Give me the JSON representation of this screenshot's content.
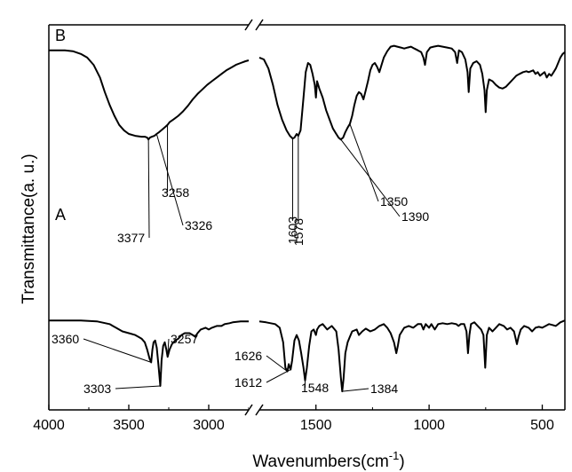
{
  "chart_data": {
    "type": "line",
    "title": "",
    "xlabel": "Wavenumbers(cm",
    "xlabel_sup": "-1",
    "xlabel_close": ")",
    "ylabel": "Transmittance(a. u.)",
    "x_axis": {
      "reversed": true,
      "broken": true,
      "segments": [
        [
          4000,
          2750
        ],
        [
          1750,
          400
        ]
      ],
      "ticks": [
        4000,
        3500,
        3000,
        1500,
        1000,
        500
      ]
    },
    "grid": false,
    "series": [
      {
        "name": "A",
        "points": [
          [
            4000,
            0.64
          ],
          [
            3800,
            0.64
          ],
          [
            3700,
            0.645
          ],
          [
            3620,
            0.66
          ],
          [
            3580,
            0.68
          ],
          [
            3540,
            0.7
          ],
          [
            3500,
            0.71
          ],
          [
            3460,
            0.72
          ],
          [
            3440,
            0.73
          ],
          [
            3420,
            0.74
          ],
          [
            3400,
            0.76
          ],
          [
            3385,
            0.8
          ],
          [
            3370,
            0.85
          ],
          [
            3360,
            0.87
          ],
          [
            3352,
            0.8
          ],
          [
            3345,
            0.76
          ],
          [
            3335,
            0.75
          ],
          [
            3325,
            0.79
          ],
          [
            3315,
            0.88
          ],
          [
            3303,
            1.0
          ],
          [
            3295,
            0.86
          ],
          [
            3285,
            0.78
          ],
          [
            3275,
            0.76
          ],
          [
            3265,
            0.8
          ],
          [
            3257,
            0.84
          ],
          [
            3245,
            0.8
          ],
          [
            3230,
            0.77
          ],
          [
            3210,
            0.75
          ],
          [
            3190,
            0.74
          ],
          [
            3170,
            0.72
          ],
          [
            3150,
            0.71
          ],
          [
            3120,
            0.71
          ],
          [
            3100,
            0.72
          ],
          [
            3085,
            0.73
          ],
          [
            3070,
            0.71
          ],
          [
            3050,
            0.69
          ],
          [
            3020,
            0.68
          ],
          [
            3000,
            0.69
          ],
          [
            2980,
            0.68
          ],
          [
            2950,
            0.67
          ],
          [
            2920,
            0.67
          ],
          [
            2900,
            0.66
          ],
          [
            2870,
            0.655
          ],
          [
            2850,
            0.65
          ],
          [
            2800,
            0.645
          ],
          [
            2750,
            0.645
          ],
          [
            1750,
            0.645
          ],
          [
            1720,
            0.65
          ],
          [
            1700,
            0.655
          ],
          [
            1680,
            0.66
          ],
          [
            1660,
            0.68
          ],
          [
            1645,
            0.76
          ],
          [
            1635,
            0.9
          ],
          [
            1626,
            0.92
          ],
          [
            1620,
            0.88
          ],
          [
            1612,
            0.91
          ],
          [
            1605,
            0.86
          ],
          [
            1595,
            0.75
          ],
          [
            1585,
            0.72
          ],
          [
            1575,
            0.75
          ],
          [
            1565,
            0.82
          ],
          [
            1555,
            0.9
          ],
          [
            1548,
            0.97
          ],
          [
            1540,
            0.9
          ],
          [
            1530,
            0.78
          ],
          [
            1520,
            0.7
          ],
          [
            1510,
            0.69
          ],
          [
            1500,
            0.72
          ],
          [
            1495,
            0.69
          ],
          [
            1485,
            0.67
          ],
          [
            1470,
            0.66
          ],
          [
            1450,
            0.69
          ],
          [
            1430,
            0.67
          ],
          [
            1410,
            0.7
          ],
          [
            1400,
            0.8
          ],
          [
            1390,
            0.95
          ],
          [
            1384,
            1.03
          ],
          [
            1378,
            0.96
          ],
          [
            1370,
            0.82
          ],
          [
            1360,
            0.76
          ],
          [
            1350,
            0.73
          ],
          [
            1340,
            0.7
          ],
          [
            1320,
            0.69
          ],
          [
            1310,
            0.72
          ],
          [
            1295,
            0.7
          ],
          [
            1280,
            0.685
          ],
          [
            1260,
            0.7
          ],
          [
            1240,
            0.69
          ],
          [
            1220,
            0.67
          ],
          [
            1200,
            0.66
          ],
          [
            1185,
            0.68
          ],
          [
            1170,
            0.71
          ],
          [
            1155,
            0.76
          ],
          [
            1145,
            0.82
          ],
          [
            1138,
            0.78
          ],
          [
            1130,
            0.72
          ],
          [
            1110,
            0.68
          ],
          [
            1090,
            0.67
          ],
          [
            1070,
            0.68
          ],
          [
            1050,
            0.66
          ],
          [
            1035,
            0.66
          ],
          [
            1025,
            0.69
          ],
          [
            1015,
            0.66
          ],
          [
            1000,
            0.68
          ],
          [
            990,
            0.66
          ],
          [
            975,
            0.69
          ],
          [
            960,
            0.66
          ],
          [
            940,
            0.655
          ],
          [
            920,
            0.66
          ],
          [
            900,
            0.655
          ],
          [
            880,
            0.66
          ],
          [
            870,
            0.67
          ],
          [
            860,
            0.66
          ],
          [
            845,
            0.66
          ],
          [
            835,
            0.7
          ],
          [
            828,
            0.82
          ],
          [
            822,
            0.72
          ],
          [
            815,
            0.66
          ],
          [
            800,
            0.65
          ],
          [
            785,
            0.67
          ],
          [
            770,
            0.69
          ],
          [
            760,
            0.72
          ],
          [
            752,
            0.9
          ],
          [
            745,
            0.72
          ],
          [
            735,
            0.68
          ],
          [
            720,
            0.7
          ],
          [
            705,
            0.68
          ],
          [
            690,
            0.66
          ],
          [
            670,
            0.67
          ],
          [
            655,
            0.69
          ],
          [
            640,
            0.68
          ],
          [
            625,
            0.7
          ],
          [
            612,
            0.77
          ],
          [
            605,
            0.73
          ],
          [
            595,
            0.69
          ],
          [
            580,
            0.67
          ],
          [
            560,
            0.68
          ],
          [
            545,
            0.7
          ],
          [
            530,
            0.68
          ],
          [
            515,
            0.675
          ],
          [
            500,
            0.68
          ],
          [
            485,
            0.67
          ],
          [
            470,
            0.66
          ],
          [
            455,
            0.665
          ],
          [
            440,
            0.67
          ],
          [
            420,
            0.65
          ],
          [
            400,
            0.64
          ]
        ]
      },
      {
        "name": "B",
        "points": [
          [
            4000,
            0.14
          ],
          [
            3900,
            0.14
          ],
          [
            3850,
            0.145
          ],
          [
            3800,
            0.16
          ],
          [
            3760,
            0.18
          ],
          [
            3720,
            0.22
          ],
          [
            3680,
            0.29
          ],
          [
            3650,
            0.37
          ],
          [
            3620,
            0.44
          ],
          [
            3590,
            0.5
          ],
          [
            3560,
            0.55
          ],
          [
            3530,
            0.58
          ],
          [
            3500,
            0.6
          ],
          [
            3460,
            0.61
          ],
          [
            3420,
            0.615
          ],
          [
            3400,
            0.615
          ],
          [
            3385,
            0.62
          ],
          [
            3377,
            0.63
          ],
          [
            3368,
            0.62
          ],
          [
            3355,
            0.615
          ],
          [
            3340,
            0.61
          ],
          [
            3326,
            0.6
          ],
          [
            3310,
            0.59
          ],
          [
            3290,
            0.575
          ],
          [
            3270,
            0.56
          ],
          [
            3258,
            0.55
          ],
          [
            3245,
            0.535
          ],
          [
            3220,
            0.52
          ],
          [
            3190,
            0.5
          ],
          [
            3160,
            0.475
          ],
          [
            3130,
            0.445
          ],
          [
            3100,
            0.41
          ],
          [
            3070,
            0.38
          ],
          [
            3040,
            0.355
          ],
          [
            3010,
            0.33
          ],
          [
            2980,
            0.31
          ],
          [
            2950,
            0.29
          ],
          [
            2920,
            0.27
          ],
          [
            2890,
            0.25
          ],
          [
            2860,
            0.235
          ],
          [
            2830,
            0.22
          ],
          [
            2800,
            0.21
          ],
          [
            2770,
            0.2
          ],
          [
            2750,
            0.195
          ],
          [
            1750,
            0.18
          ],
          [
            1730,
            0.19
          ],
          [
            1710,
            0.24
          ],
          [
            1690,
            0.33
          ],
          [
            1670,
            0.44
          ],
          [
            1650,
            0.52
          ],
          [
            1630,
            0.58
          ],
          [
            1615,
            0.61
          ],
          [
            1603,
            0.625
          ],
          [
            1595,
            0.62
          ],
          [
            1585,
            0.6
          ],
          [
            1578,
            0.61
          ],
          [
            1568,
            0.58
          ],
          [
            1555,
            0.4
          ],
          [
            1545,
            0.26
          ],
          [
            1535,
            0.21
          ],
          [
            1525,
            0.22
          ],
          [
            1515,
            0.27
          ],
          [
            1505,
            0.33
          ],
          [
            1500,
            0.4
          ],
          [
            1495,
            0.31
          ],
          [
            1485,
            0.35
          ],
          [
            1470,
            0.4
          ],
          [
            1455,
            0.47
          ],
          [
            1440,
            0.52
          ],
          [
            1425,
            0.57
          ],
          [
            1410,
            0.6
          ],
          [
            1400,
            0.62
          ],
          [
            1390,
            0.63
          ],
          [
            1380,
            0.62
          ],
          [
            1370,
            0.59
          ],
          [
            1360,
            0.565
          ],
          [
            1350,
            0.545
          ],
          [
            1340,
            0.5
          ],
          [
            1330,
            0.44
          ],
          [
            1320,
            0.39
          ],
          [
            1310,
            0.37
          ],
          [
            1300,
            0.38
          ],
          [
            1290,
            0.41
          ],
          [
            1280,
            0.36
          ],
          [
            1270,
            0.31
          ],
          [
            1260,
            0.25
          ],
          [
            1250,
            0.22
          ],
          [
            1240,
            0.21
          ],
          [
            1230,
            0.23
          ],
          [
            1220,
            0.26
          ],
          [
            1210,
            0.22
          ],
          [
            1200,
            0.18
          ],
          [
            1185,
            0.145
          ],
          [
            1170,
            0.12
          ],
          [
            1155,
            0.115
          ],
          [
            1140,
            0.12
          ],
          [
            1125,
            0.125
          ],
          [
            1110,
            0.13
          ],
          [
            1095,
            0.125
          ],
          [
            1080,
            0.12
          ],
          [
            1065,
            0.13
          ],
          [
            1050,
            0.14
          ],
          [
            1035,
            0.15
          ],
          [
            1025,
            0.18
          ],
          [
            1018,
            0.22
          ],
          [
            1010,
            0.15
          ],
          [
            995,
            0.125
          ],
          [
            980,
            0.12
          ],
          [
            960,
            0.115
          ],
          [
            940,
            0.12
          ],
          [
            920,
            0.125
          ],
          [
            900,
            0.13
          ],
          [
            885,
            0.15
          ],
          [
            876,
            0.21
          ],
          [
            868,
            0.14
          ],
          [
            855,
            0.15
          ],
          [
            840,
            0.19
          ],
          [
            830,
            0.26
          ],
          [
            825,
            0.37
          ],
          [
            818,
            0.24
          ],
          [
            805,
            0.21
          ],
          [
            790,
            0.2
          ],
          [
            775,
            0.22
          ],
          [
            765,
            0.27
          ],
          [
            755,
            0.36
          ],
          [
            750,
            0.48
          ],
          [
            745,
            0.36
          ],
          [
            735,
            0.3
          ],
          [
            720,
            0.31
          ],
          [
            705,
            0.33
          ],
          [
            690,
            0.345
          ],
          [
            675,
            0.35
          ],
          [
            660,
            0.34
          ],
          [
            645,
            0.32
          ],
          [
            630,
            0.3
          ],
          [
            615,
            0.28
          ],
          [
            600,
            0.27
          ],
          [
            585,
            0.26
          ],
          [
            570,
            0.255
          ],
          [
            560,
            0.26
          ],
          [
            550,
            0.255
          ],
          [
            540,
            0.25
          ],
          [
            530,
            0.27
          ],
          [
            520,
            0.26
          ],
          [
            510,
            0.28
          ],
          [
            500,
            0.27
          ],
          [
            490,
            0.26
          ],
          [
            480,
            0.29
          ],
          [
            470,
            0.27
          ],
          [
            460,
            0.28
          ],
          [
            450,
            0.26
          ],
          [
            440,
            0.24
          ],
          [
            430,
            0.21
          ],
          [
            420,
            0.18
          ],
          [
            410,
            0.16
          ],
          [
            400,
            0.15
          ]
        ]
      }
    ],
    "annotations": [
      {
        "text": "3258",
        "series": "B",
        "x": 3258
      },
      {
        "text": "3326",
        "series": "B",
        "x": 3326
      },
      {
        "text": "3377",
        "series": "B",
        "x": 3377
      },
      {
        "text": "1603",
        "series": "B",
        "x": 1603
      },
      {
        "text": "1578",
        "series": "B",
        "x": 1578
      },
      {
        "text": "1350",
        "series": "B",
        "x": 1350
      },
      {
        "text": "1390",
        "series": "B",
        "x": 1390
      },
      {
        "text": "3360",
        "series": "A",
        "x": 3360
      },
      {
        "text": "3257",
        "series": "A",
        "x": 3257
      },
      {
        "text": "3303",
        "series": "A",
        "x": 3303
      },
      {
        "text": "1626",
        "series": "A",
        "x": 1626
      },
      {
        "text": "1612",
        "series": "A",
        "x": 1612
      },
      {
        "text": "1548",
        "series": "A",
        "x": 1548
      },
      {
        "text": "1384",
        "series": "A",
        "x": 1384
      }
    ]
  }
}
